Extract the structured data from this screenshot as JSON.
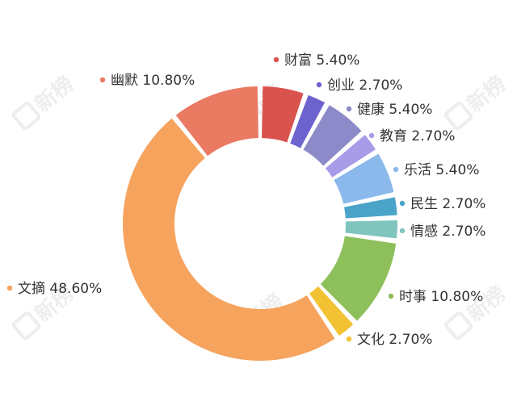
{
  "chart_data": {
    "type": "pie",
    "categories": [
      "财富",
      "创业",
      "健康",
      "教育",
      "乐活",
      "民生",
      "情感",
      "时事",
      "文化",
      "文摘",
      "幽默"
    ],
    "series": [
      {
        "values": [
          5.4,
          2.7,
          5.4,
          2.7,
          5.4,
          2.7,
          2.7,
          10.8,
          2.7,
          48.6,
          10.8
        ]
      }
    ],
    "value_labels": [
      "5.40%",
      "2.70%",
      "5.40%",
      "2.70%",
      "5.40%",
      "2.70%",
      "2.70%",
      "10.80%",
      "2.70%",
      "48.60%",
      "10.80%"
    ],
    "colors": [
      "#d9534f",
      "#6d63cf",
      "#8d8ac9",
      "#a89be8",
      "#8bb9ec",
      "#4aa3c9",
      "#7fc4bd",
      "#8dbf5a",
      "#f2c232",
      "#f6a35e",
      "#ea7a62"
    ],
    "donut": true,
    "legend": "labels-around",
    "watermark": "新榜"
  }
}
